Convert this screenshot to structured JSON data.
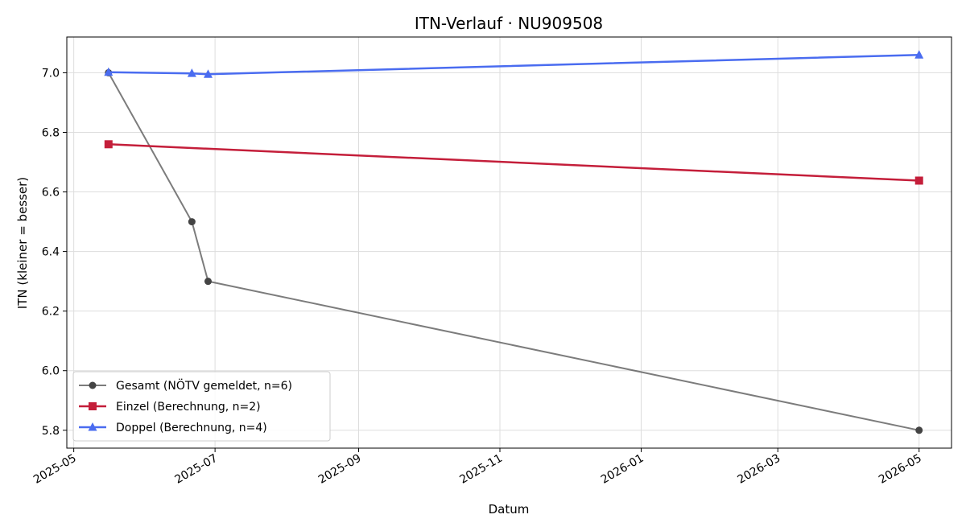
{
  "chart_data": {
    "type": "line",
    "title": "ITN-Verlauf · NU909508",
    "xlabel": "Datum",
    "ylabel": "ITN  (kleiner = besser)",
    "x_ticks": [
      "2025-05",
      "2025-07",
      "2025-09",
      "2025-11",
      "2026-01",
      "2026-03",
      "2026-05"
    ],
    "y_ticks": [
      "5.8",
      "6.0",
      "6.2",
      "6.4",
      "6.6",
      "6.8",
      "7.0"
    ],
    "xlim": [
      "2025-04-28",
      "2026-05-15"
    ],
    "ylim": [
      5.74,
      7.12
    ],
    "grid": true,
    "legend_position": "lower-left",
    "series": [
      {
        "name": "Gesamt (NÖTV gemeldet, n=6)",
        "color": "#444444",
        "marker": "circle",
        "points": [
          {
            "x": "2025-05-16",
            "y": 7.0
          },
          {
            "x": "2025-06-21",
            "y": 6.5
          },
          {
            "x": "2025-06-28",
            "y": 6.3
          },
          {
            "x": "2026-05-01",
            "y": 5.8
          }
        ]
      },
      {
        "name": "Einzel (Berechnung, n=2)",
        "color": "#c41e3a",
        "marker": "square",
        "points": [
          {
            "x": "2025-05-16",
            "y": 6.76
          },
          {
            "x": "2026-05-01",
            "y": 6.638
          }
        ]
      },
      {
        "name": "Doppel (Berechnung, n=4)",
        "color": "#4a6cf0",
        "marker": "triangle",
        "points": [
          {
            "x": "2025-05-16",
            "y": 7.002
          },
          {
            "x": "2025-06-21",
            "y": 6.998
          },
          {
            "x": "2025-06-28",
            "y": 6.995
          },
          {
            "x": "2026-05-01",
            "y": 7.06
          }
        ]
      }
    ]
  }
}
